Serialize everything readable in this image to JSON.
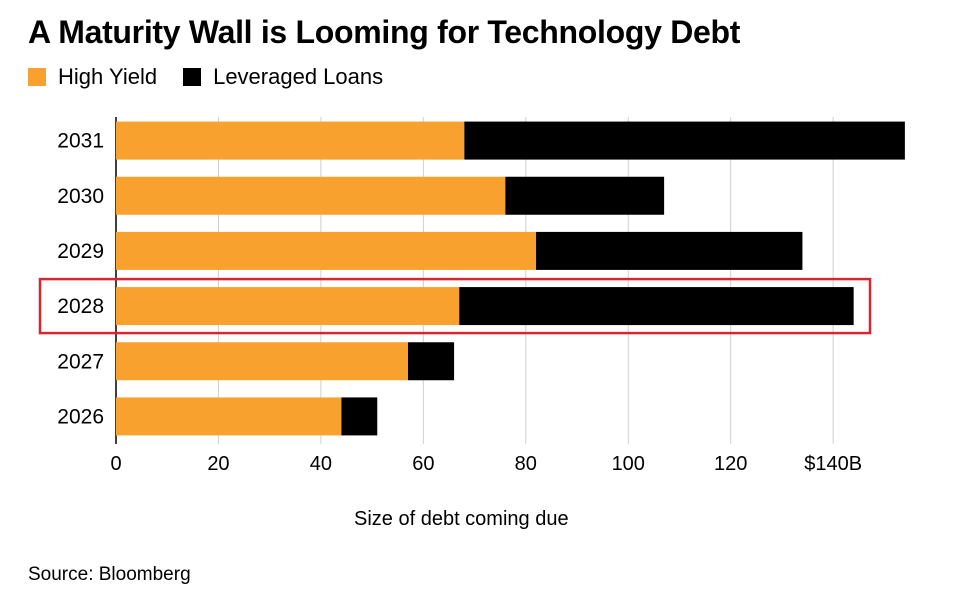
{
  "title": "A Maturity Wall is Looming for Technology Debt",
  "source": "Source: Bloomberg",
  "colors": {
    "high_yield": "#f9a12e",
    "leveraged_loans": "#000000",
    "grid": "#cfcfcf",
    "highlight": "#d62730"
  },
  "chart_data": {
    "type": "bar",
    "orientation": "horizontal",
    "stacked": true,
    "categories": [
      "2031",
      "2030",
      "2029",
      "2028",
      "2027",
      "2026"
    ],
    "series": [
      {
        "name": "High Yield",
        "values": [
          68,
          76,
          82,
          67,
          57,
          44
        ]
      },
      {
        "name": "Leveraged Loans",
        "values": [
          86,
          31,
          52,
          77,
          9,
          7
        ]
      }
    ],
    "xlabel": "Size of debt coming due",
    "ylabel": "",
    "xlim": [
      0,
      155
    ],
    "xticks": [
      0,
      20,
      40,
      60,
      80,
      100,
      120,
      140
    ],
    "xtick_labels": [
      "0",
      "20",
      "40",
      "60",
      "80",
      "100",
      "120",
      "$140B"
    ],
    "grid": true,
    "legend_position": "top-left",
    "highlighted_category": "2028"
  }
}
